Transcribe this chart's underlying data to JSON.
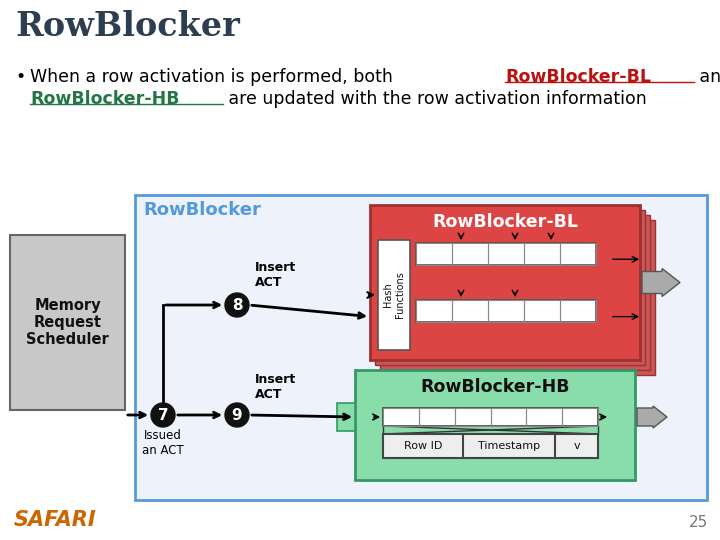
{
  "title": "RowBlocker",
  "title_fontsize": 24,
  "title_color": "#2c3e50",
  "bg_color": "#ffffff",
  "safari_color": "#cc6600",
  "page_number": "25",
  "diagram_border_color": "#5599dd",
  "rowblocker_label_color": "#5599dd",
  "bl_box_color": "#cc3333",
  "bl_box_label": "RowBlocker-BL",
  "hb_box_color": "#66cc88",
  "hb_box_label": "RowBlocker-HB",
  "memory_box_color": "#cccccc",
  "memory_label": "Memory\nRequest\nScheduler",
  "diag_bg": "#eef2fa"
}
